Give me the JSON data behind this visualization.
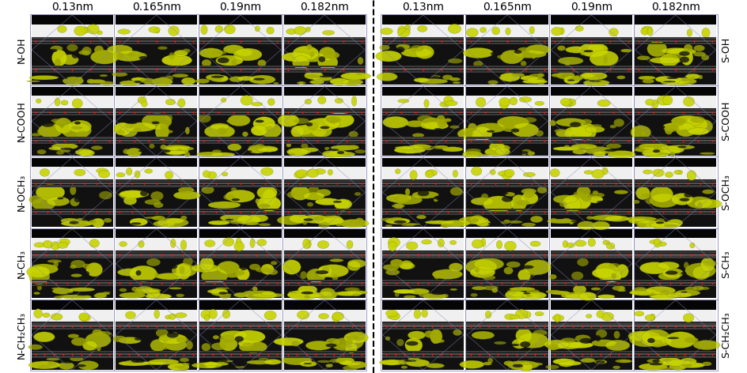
{
  "col_labels": [
    "0.13nm",
    "0.165nm",
    "0.19nm",
    "0.182nm"
  ],
  "row_labels_left": [
    "N-OH",
    "N-COOH",
    "N-OCH₃",
    "N-CH₃",
    "N-CH₂CH₃"
  ],
  "row_labels_right": [
    "S-OH",
    "S-COOH",
    "S-OCH₃",
    "S-CH₃",
    "S-CH₂CH₃"
  ],
  "n_rows": 5,
  "n_cols": 4,
  "background_color": "#ffffff",
  "frame_color": "#8888bb",
  "dashed_line_color": "#000000",
  "col_label_fontsize": 10,
  "row_label_fontsize": 9
}
